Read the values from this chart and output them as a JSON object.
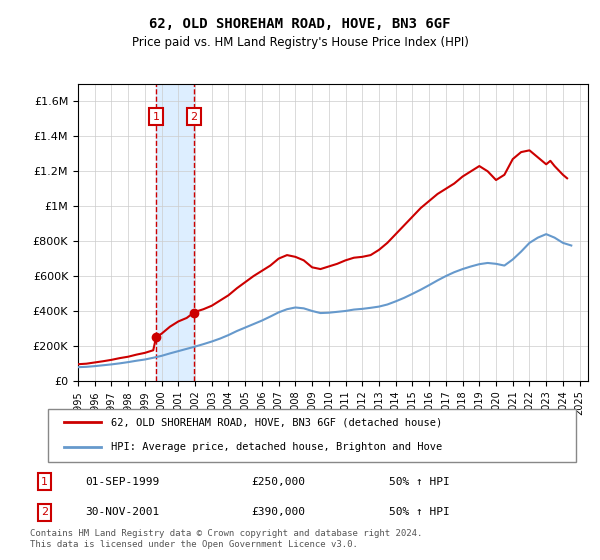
{
  "title": "62, OLD SHOREHAM ROAD, HOVE, BN3 6GF",
  "subtitle": "Price paid vs. HM Land Registry's House Price Index (HPI)",
  "legend_line1": "62, OLD SHOREHAM ROAD, HOVE, BN3 6GF (detached house)",
  "legend_line2": "HPI: Average price, detached house, Brighton and Hove",
  "footnote": "Contains HM Land Registry data © Crown copyright and database right 2024.\nThis data is licensed under the Open Government Licence v3.0.",
  "sale1_label": "1",
  "sale1_date": "01-SEP-1999",
  "sale1_price": "£250,000",
  "sale1_hpi": "50% ↑ HPI",
  "sale1_x": 1999.67,
  "sale1_y": 250000,
  "sale2_label": "2",
  "sale2_date": "30-NOV-2001",
  "sale2_price": "£390,000",
  "sale2_hpi": "50% ↑ HPI",
  "sale2_x": 2001.92,
  "sale2_y": 390000,
  "red_color": "#cc0000",
  "blue_color": "#6699cc",
  "shade_color": "#ddeeff",
  "ylim": [
    0,
    1700000
  ],
  "xlim": [
    1995.0,
    2025.5
  ],
  "yticks": [
    0,
    200000,
    400000,
    600000,
    800000,
    1000000,
    1200000,
    1400000,
    1600000
  ],
  "xticks": [
    1995,
    1996,
    1997,
    1998,
    1999,
    2000,
    2001,
    2002,
    2003,
    2004,
    2005,
    2006,
    2007,
    2008,
    2009,
    2010,
    2011,
    2012,
    2013,
    2014,
    2015,
    2016,
    2017,
    2018,
    2019,
    2020,
    2021,
    2022,
    2023,
    2024,
    2025
  ],
  "red_x": [
    1995.0,
    1995.5,
    1996.0,
    1996.5,
    1997.0,
    1997.5,
    1998.0,
    1998.5,
    1999.0,
    1999.5,
    1999.67,
    2000.0,
    2000.5,
    2001.0,
    2001.5,
    2001.92,
    2002.0,
    2002.5,
    2003.0,
    2003.5,
    2004.0,
    2004.5,
    2005.0,
    2005.5,
    2006.0,
    2006.5,
    2007.0,
    2007.5,
    2008.0,
    2008.5,
    2009.0,
    2009.5,
    2010.0,
    2010.5,
    2011.0,
    2011.5,
    2012.0,
    2012.5,
    2013.0,
    2013.5,
    2014.0,
    2014.5,
    2015.0,
    2015.5,
    2016.0,
    2016.5,
    2017.0,
    2017.5,
    2018.0,
    2018.5,
    2019.0,
    2019.5,
    2020.0,
    2020.5,
    2021.0,
    2021.5,
    2022.0,
    2022.5,
    2023.0,
    2023.25,
    2023.5,
    2024.0,
    2024.25
  ],
  "red_y": [
    95000,
    98000,
    105000,
    112000,
    120000,
    130000,
    138000,
    150000,
    160000,
    175000,
    250000,
    270000,
    310000,
    340000,
    360000,
    390000,
    395000,
    410000,
    430000,
    460000,
    490000,
    530000,
    565000,
    600000,
    630000,
    660000,
    700000,
    720000,
    710000,
    690000,
    650000,
    640000,
    655000,
    670000,
    690000,
    705000,
    710000,
    720000,
    750000,
    790000,
    840000,
    890000,
    940000,
    990000,
    1030000,
    1070000,
    1100000,
    1130000,
    1170000,
    1200000,
    1230000,
    1200000,
    1150000,
    1180000,
    1270000,
    1310000,
    1320000,
    1280000,
    1240000,
    1260000,
    1230000,
    1180000,
    1160000
  ],
  "blue_x": [
    1995.0,
    1995.5,
    1996.0,
    1996.5,
    1997.0,
    1997.5,
    1998.0,
    1998.5,
    1999.0,
    1999.5,
    2000.0,
    2000.5,
    2001.0,
    2001.5,
    2002.0,
    2002.5,
    2003.0,
    2003.5,
    2004.0,
    2004.5,
    2005.0,
    2005.5,
    2006.0,
    2006.5,
    2007.0,
    2007.5,
    2008.0,
    2008.5,
    2009.0,
    2009.5,
    2010.0,
    2010.5,
    2011.0,
    2011.5,
    2012.0,
    2012.5,
    2013.0,
    2013.5,
    2014.0,
    2014.5,
    2015.0,
    2015.5,
    2016.0,
    2016.5,
    2017.0,
    2017.5,
    2018.0,
    2018.5,
    2019.0,
    2019.5,
    2020.0,
    2020.5,
    2021.0,
    2021.5,
    2022.0,
    2022.5,
    2023.0,
    2023.5,
    2024.0,
    2024.5
  ],
  "blue_y": [
    78000,
    80000,
    84000,
    89000,
    94000,
    100000,
    107000,
    115000,
    122000,
    132000,
    143000,
    157000,
    170000,
    183000,
    196000,
    210000,
    225000,
    242000,
    262000,
    285000,
    305000,
    325000,
    345000,
    368000,
    392000,
    410000,
    420000,
    415000,
    400000,
    388000,
    390000,
    395000,
    400000,
    408000,
    412000,
    418000,
    425000,
    437000,
    455000,
    475000,
    498000,
    522000,
    548000,
    575000,
    600000,
    622000,
    640000,
    655000,
    668000,
    675000,
    670000,
    660000,
    695000,
    740000,
    790000,
    820000,
    840000,
    820000,
    790000,
    775000
  ]
}
